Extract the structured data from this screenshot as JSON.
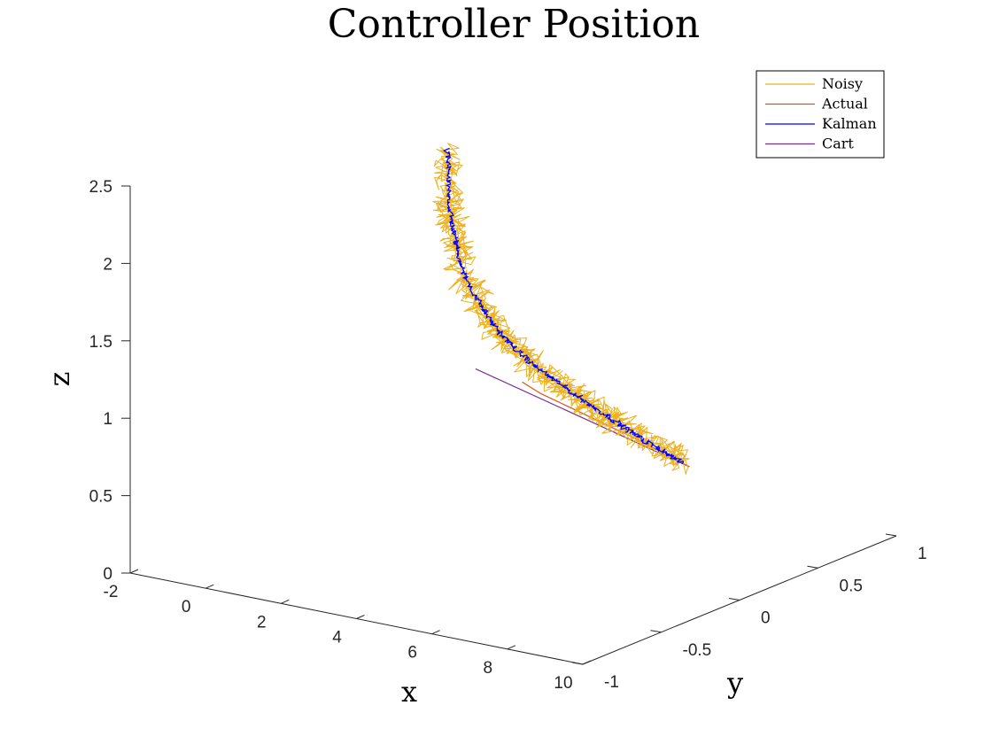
{
  "chart_data": {
    "type": "line",
    "title": "Controller Position",
    "xlabel": "x",
    "ylabel": "y",
    "zlabel": "z",
    "xlim": [
      -2,
      10
    ],
    "ylim": [
      -1,
      1
    ],
    "zlim": [
      0,
      2.5
    ],
    "xticks": [
      -2,
      0,
      2,
      4,
      6,
      8,
      10
    ],
    "yticks": [
      -1,
      -0.5,
      0,
      0.5,
      1
    ],
    "zticks": [
      0,
      0.5,
      1,
      1.5,
      2,
      2.5
    ],
    "grid": false,
    "legend_position": "top-right",
    "series": [
      {
        "name": "Noisy",
        "color": "#EDB120",
        "noise_amplitude": 0.06,
        "x": [
          1.4,
          1.45,
          1.55,
          1.7,
          1.9,
          2.2,
          2.6,
          3.0,
          3.5,
          4.0,
          4.6,
          5.2,
          5.8,
          6.4,
          7.0,
          7.6,
          8.2,
          8.8,
          9.3
        ],
        "y": [
          0.2,
          0.2,
          0.18,
          0.17,
          0.15,
          0.12,
          0.1,
          0.08,
          0.05,
          0.03,
          0.0,
          -0.02,
          -0.05,
          -0.08,
          -0.1,
          -0.13,
          -0.16,
          -0.18,
          -0.2
        ],
        "z": [
          2.4,
          2.22,
          2.05,
          1.92,
          1.8,
          1.67,
          1.55,
          1.45,
          1.37,
          1.3,
          1.24,
          1.19,
          1.15,
          1.11,
          1.07,
          1.03,
          1.0,
          0.97,
          0.93
        ]
      },
      {
        "name": "Actual",
        "color": "#D95319",
        "x": [
          4.4,
          5.0,
          6.0,
          7.0,
          8.0,
          9.0,
          9.5
        ],
        "y": [
          -0.04,
          -0.07,
          -0.1,
          -0.13,
          -0.16,
          -0.19,
          -0.2
        ],
        "z": [
          1.15,
          1.12,
          1.08,
          1.04,
          1.0,
          0.95,
          0.92
        ]
      },
      {
        "name": "Kalman",
        "color": "#0000FF",
        "noise_amplitude": 0.012,
        "x": [
          1.4,
          1.45,
          1.55,
          1.7,
          1.9,
          2.2,
          2.6,
          3.0,
          3.5,
          4.0,
          4.6,
          5.2,
          5.8,
          6.4,
          7.0,
          7.6,
          8.2,
          8.8,
          9.3
        ],
        "y": [
          0.2,
          0.2,
          0.18,
          0.17,
          0.15,
          0.12,
          0.1,
          0.08,
          0.05,
          0.03,
          0.0,
          -0.02,
          -0.05,
          -0.08,
          -0.1,
          -0.13,
          -0.16,
          -0.18,
          -0.2
        ],
        "z": [
          2.4,
          2.22,
          2.05,
          1.92,
          1.8,
          1.67,
          1.55,
          1.45,
          1.37,
          1.3,
          1.24,
          1.19,
          1.15,
          1.11,
          1.07,
          1.03,
          1.0,
          0.97,
          0.93
        ]
      },
      {
        "name": "Cart",
        "color": "#7E2F8E",
        "x": [
          3.0,
          9.5
        ],
        "y": [
          0.0,
          -0.2
        ],
        "z": [
          1.15,
          0.92
        ]
      }
    ]
  }
}
